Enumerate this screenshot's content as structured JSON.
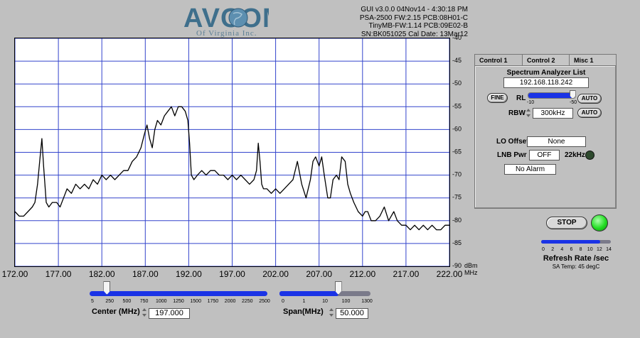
{
  "logo": {
    "main": "AVCOM",
    "sub": "Of Virginia Inc."
  },
  "info": [
    "GUI v3.0.0  04Nov14 - 4:30:18 PM",
    "PSA-2500 FW:2.15 PCB:08H01-C",
    "TinyMB-FW:1.14  PCB:09E02-B",
    "SN:BK051025  Cal Date: 13Mar12"
  ],
  "chart_data": {
    "type": "line",
    "xlabel": "MHz",
    "ylabel": "dBm",
    "xlim": [
      172,
      222
    ],
    "ylim": [
      -90,
      -40
    ],
    "x_ticks": [
      "172.00",
      "177.00",
      "182.00",
      "187.00",
      "192.00",
      "197.00",
      "202.00",
      "207.00",
      "212.00",
      "217.00",
      "222.00"
    ],
    "y_ticks": [
      "-40",
      "-45",
      "-50",
      "-55",
      "-60",
      "-65",
      "-70",
      "-75",
      "-80",
      "-85",
      "-90"
    ],
    "grid": true,
    "line_color": "#000000",
    "grid_color": "#3344cc",
    "series": [
      {
        "x": [
          172.0,
          172.5,
          173.0,
          173.5,
          174.0,
          174.3,
          174.6,
          174.9,
          175.1,
          175.3,
          175.6,
          175.9,
          176.3,
          176.8,
          177.2,
          177.6,
          178.0,
          178.5,
          179.0,
          179.5,
          180.0,
          180.5,
          181.0,
          181.5,
          182.0,
          182.5,
          183.0,
          183.5,
          184.0,
          184.5,
          185.0,
          185.5,
          186.0,
          186.5,
          186.9,
          187.2,
          187.5,
          187.8,
          188.1,
          188.4,
          188.8,
          189.2,
          189.6,
          190.0,
          190.4,
          190.8,
          191.2,
          191.6,
          191.9,
          192.1,
          192.3,
          192.6,
          193.0,
          193.5,
          194.0,
          194.5,
          195.0,
          195.5,
          196.0,
          196.5,
          197.0,
          197.5,
          198.0,
          198.5,
          199.0,
          199.5,
          199.8,
          200.0,
          200.2,
          200.4,
          200.6,
          201.0,
          201.5,
          202.0,
          202.5,
          203.0,
          203.5,
          204.0,
          204.5,
          205.0,
          205.5,
          206.0,
          206.3,
          206.6,
          207.0,
          207.3,
          207.6,
          208.0,
          208.3,
          208.6,
          209.0,
          209.3,
          209.6,
          210.0,
          210.3,
          210.6,
          211.0,
          211.5,
          212.0,
          212.3,
          212.6,
          213.0,
          213.5,
          214.0,
          214.5,
          215.0,
          215.3,
          215.6,
          216.0,
          216.5,
          217.0,
          217.5,
          218.0,
          218.5,
          219.0,
          219.5,
          220.0,
          220.5,
          221.0,
          221.5,
          222.0
        ],
        "y": [
          -78,
          -79,
          -79,
          -78,
          -77,
          -76,
          -72,
          -66,
          -62,
          -68,
          -76,
          -77,
          -76,
          -76,
          -77,
          -75,
          -73,
          -74,
          -72,
          -73,
          -72,
          -73,
          -71,
          -72,
          -70,
          -71,
          -70,
          -71,
          -70,
          -69,
          -69,
          -67,
          -66,
          -64,
          -61,
          -59,
          -62,
          -64,
          -60,
          -58,
          -59,
          -57,
          -56,
          -55,
          -57,
          -55,
          -55,
          -56,
          -58,
          -63,
          -70,
          -71,
          -70,
          -69,
          -70,
          -69,
          -69,
          -70,
          -70,
          -71,
          -70,
          -71,
          -70,
          -71,
          -72,
          -71,
          -69,
          -63,
          -67,
          -72,
          -73,
          -73,
          -74,
          -73,
          -74,
          -73,
          -72,
          -71,
          -67,
          -72,
          -75,
          -71,
          -67,
          -66,
          -68,
          -66,
          -70,
          -75,
          -75,
          -71,
          -70,
          -71,
          -66,
          -67,
          -72,
          -74,
          -76,
          -78,
          -79,
          -78,
          -78,
          -80,
          -80,
          -79,
          -77,
          -80,
          -79,
          -78,
          -80,
          -81,
          -81,
          -82,
          -81,
          -82,
          -81,
          -82,
          -81,
          -82,
          -82,
          -81,
          -81
        ]
      }
    ]
  },
  "tabs": [
    "Control 1",
    "Control 2",
    "Misc 1"
  ],
  "control1": {
    "list_label": "Spectrum Analyzer List",
    "ip": "192.168.118.242",
    "fine_button": "FINE",
    "rl_label": "RL",
    "rl_min": "-10",
    "rl_max": "-50",
    "rl_level": 0.95,
    "auto_button": "AUTO",
    "rbw_label": "RBW",
    "rbw_value": "300kHz",
    "auto_button2": "AUTO",
    "lo_label": "LO Offset",
    "lo_value": "None",
    "lnb_label": "LNB Pwr",
    "lnb_value": "OFF",
    "khz_label": "22kHz",
    "alarm_value": "No Alarm"
  },
  "stop_button": "STOP",
  "refresh": {
    "ticks": [
      "0",
      "2",
      "4",
      "6",
      "8",
      "10",
      "12",
      "14"
    ],
    "label": "Refresh Rate /sec",
    "level": 0.85,
    "temp": "SA Temp: 45 degC"
  },
  "center": {
    "ticks": [
      "5",
      "250",
      "500",
      "750",
      "1000",
      "1250",
      "1500",
      "1750",
      "2000",
      "2250",
      "2500"
    ],
    "label": "Center (MHz)",
    "value": "197.000",
    "level": 0.08
  },
  "span": {
    "ticks": [
      "0",
      "1",
      "10",
      "100",
      "1300"
    ],
    "label": "Span(MHz)",
    "value": "50.000",
    "level": 0.65
  },
  "colors": {
    "background": "#c0c0c0",
    "slider_blue": "#1a33e6",
    "led_green": "#22dd22"
  }
}
